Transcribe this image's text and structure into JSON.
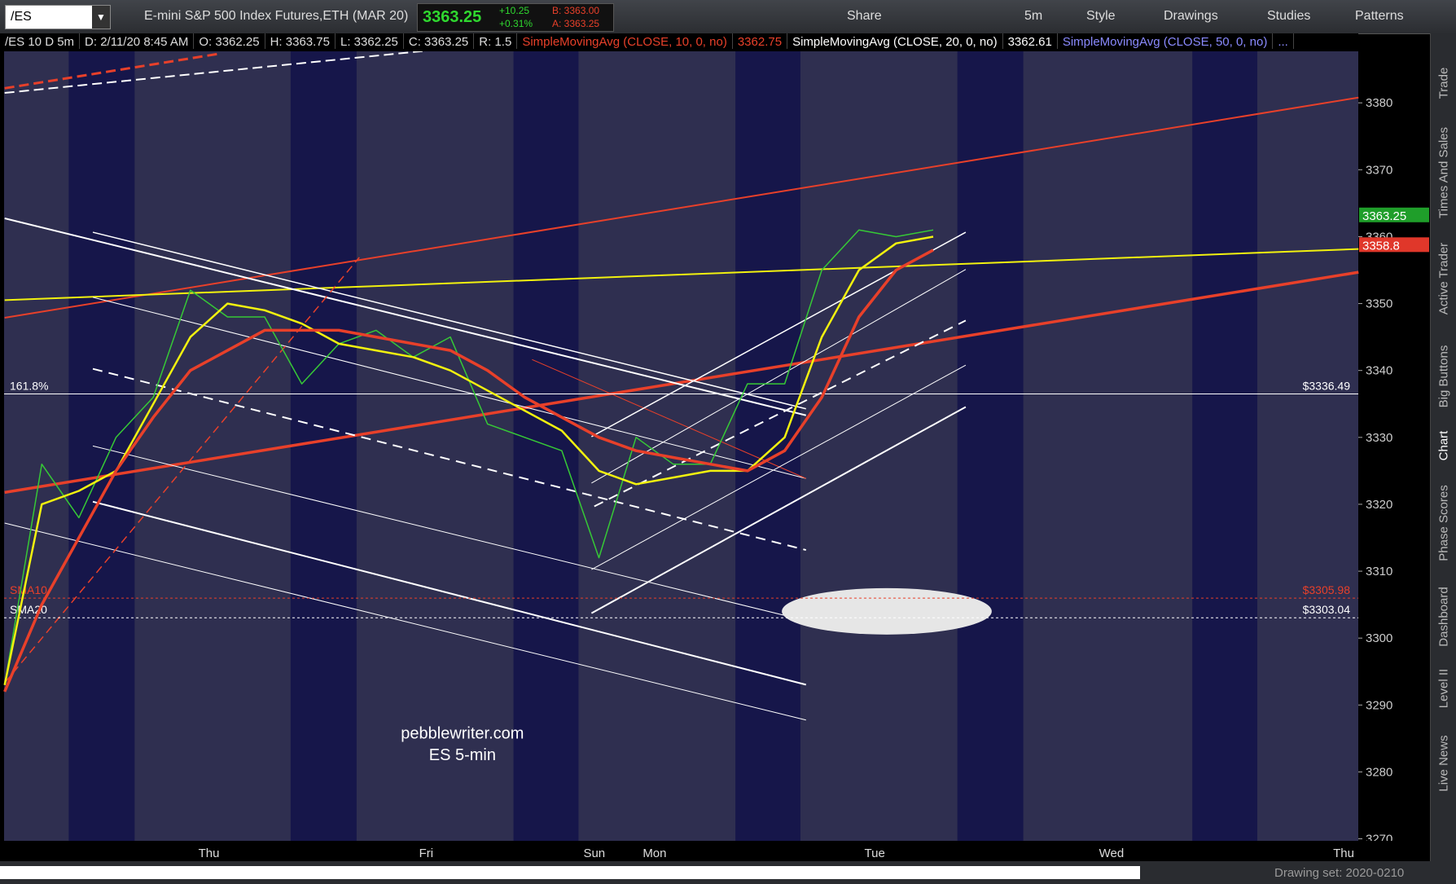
{
  "toolbar": {
    "symbol": "/ES",
    "description": "E-mini S&P 500 Index Futures,ETH (MAR 20)",
    "last": "3363.25",
    "change": "+10.25",
    "change_pct": "+0.31%",
    "bid": "B: 3363.00",
    "ask": "A: 3363.25",
    "buttons": [
      "Share",
      "5m",
      "Style",
      "Drawings",
      "Studies",
      "Patterns"
    ]
  },
  "info_bar": {
    "items": [
      "/ES 10 D 5m",
      "D: 2/11/20 8:45 AM",
      "O: 3362.25",
      "H: 3363.75",
      "L: 3362.25",
      "C: 3363.25",
      "R: 1.5"
    ],
    "studies": [
      {
        "text": "SimpleMovingAvg (CLOSE, 10, 0, no)",
        "value": "3362.75",
        "color": "#e8402a"
      },
      {
        "text": "SimpleMovingAvg (CLOSE, 20, 0, no)",
        "value": "3362.61",
        "color": "#ffffff"
      },
      {
        "text": "SimpleMovingAvg (CLOSE, 50, 0, no)",
        "value": "...",
        "color": "#8a8aff"
      }
    ]
  },
  "chart_data": {
    "type": "line",
    "series": [
      {
        "color": "#36c936",
        "width": 1.5,
        "values": [
          3293,
          3326,
          3318,
          3330,
          3336,
          3352,
          3348,
          3348,
          3338,
          3344,
          3346,
          3342,
          3345,
          3332,
          3330,
          3328,
          3312,
          3330,
          3326,
          3326,
          3338,
          3338,
          3355,
          3361,
          3360,
          3361
        ]
      },
      {
        "color": "#f2f20f",
        "width": 2.5,
        "values": [
          3293,
          3320,
          3322,
          3325,
          3335,
          3345,
          3350,
          3349,
          3347,
          3344,
          3343,
          3342,
          3340,
          3337,
          3334,
          3331,
          3325,
          3323,
          3324,
          3325,
          3325,
          3330,
          3345,
          3355,
          3359,
          3360
        ]
      },
      {
        "color": "#e8402a",
        "width": 3.5,
        "values": [
          3292,
          3305,
          3315,
          3325,
          3333,
          3340,
          3343,
          3346,
          3346,
          3346,
          3345,
          3344,
          3343,
          3340,
          3336,
          3333,
          3330,
          3328,
          3327,
          3326,
          3325,
          3328,
          3336,
          3348,
          3355,
          3358
        ]
      }
    ],
    "ylim": [
      3269.7,
      3387.7
    ],
    "yticks": [
      3270,
      3280,
      3290,
      3300,
      3310,
      3320,
      3330,
      3340,
      3350,
      3360,
      3370,
      3380
    ],
    "x_labels": [
      "Thu",
      "Fri",
      "Sun",
      "Mon",
      "Tue",
      "Wed",
      "Thu"
    ],
    "levels": [
      {
        "value": 3336.49,
        "label": "$3336.49",
        "tag": "161.8%",
        "color": "#ffffff",
        "dashed": false
      },
      {
        "value": 3305.98,
        "label": "$3305.98",
        "tag": "SMA10",
        "color": "#e8402a",
        "dashed": true
      },
      {
        "value": 3303.04,
        "label": "$3303.04",
        "tag": "SMA20",
        "color": "#ffffff",
        "dashed": true
      }
    ],
    "price_badges": [
      {
        "value": 3363.25,
        "color": "#1f9e2a"
      },
      {
        "value": 3358.8,
        "color": "#e0372a"
      }
    ],
    "watermark": [
      "pebblewriter.com",
      "ES 5-min"
    ]
  },
  "sidebar": [
    "Trade",
    "Times And Sales",
    "Active Trader",
    "Big Buttons",
    "Chart",
    "Phase Scores",
    "Dashboard",
    "Level II",
    "Live News"
  ],
  "status_bar": {
    "drawing_set": "Drawing set: 2020-0210"
  }
}
